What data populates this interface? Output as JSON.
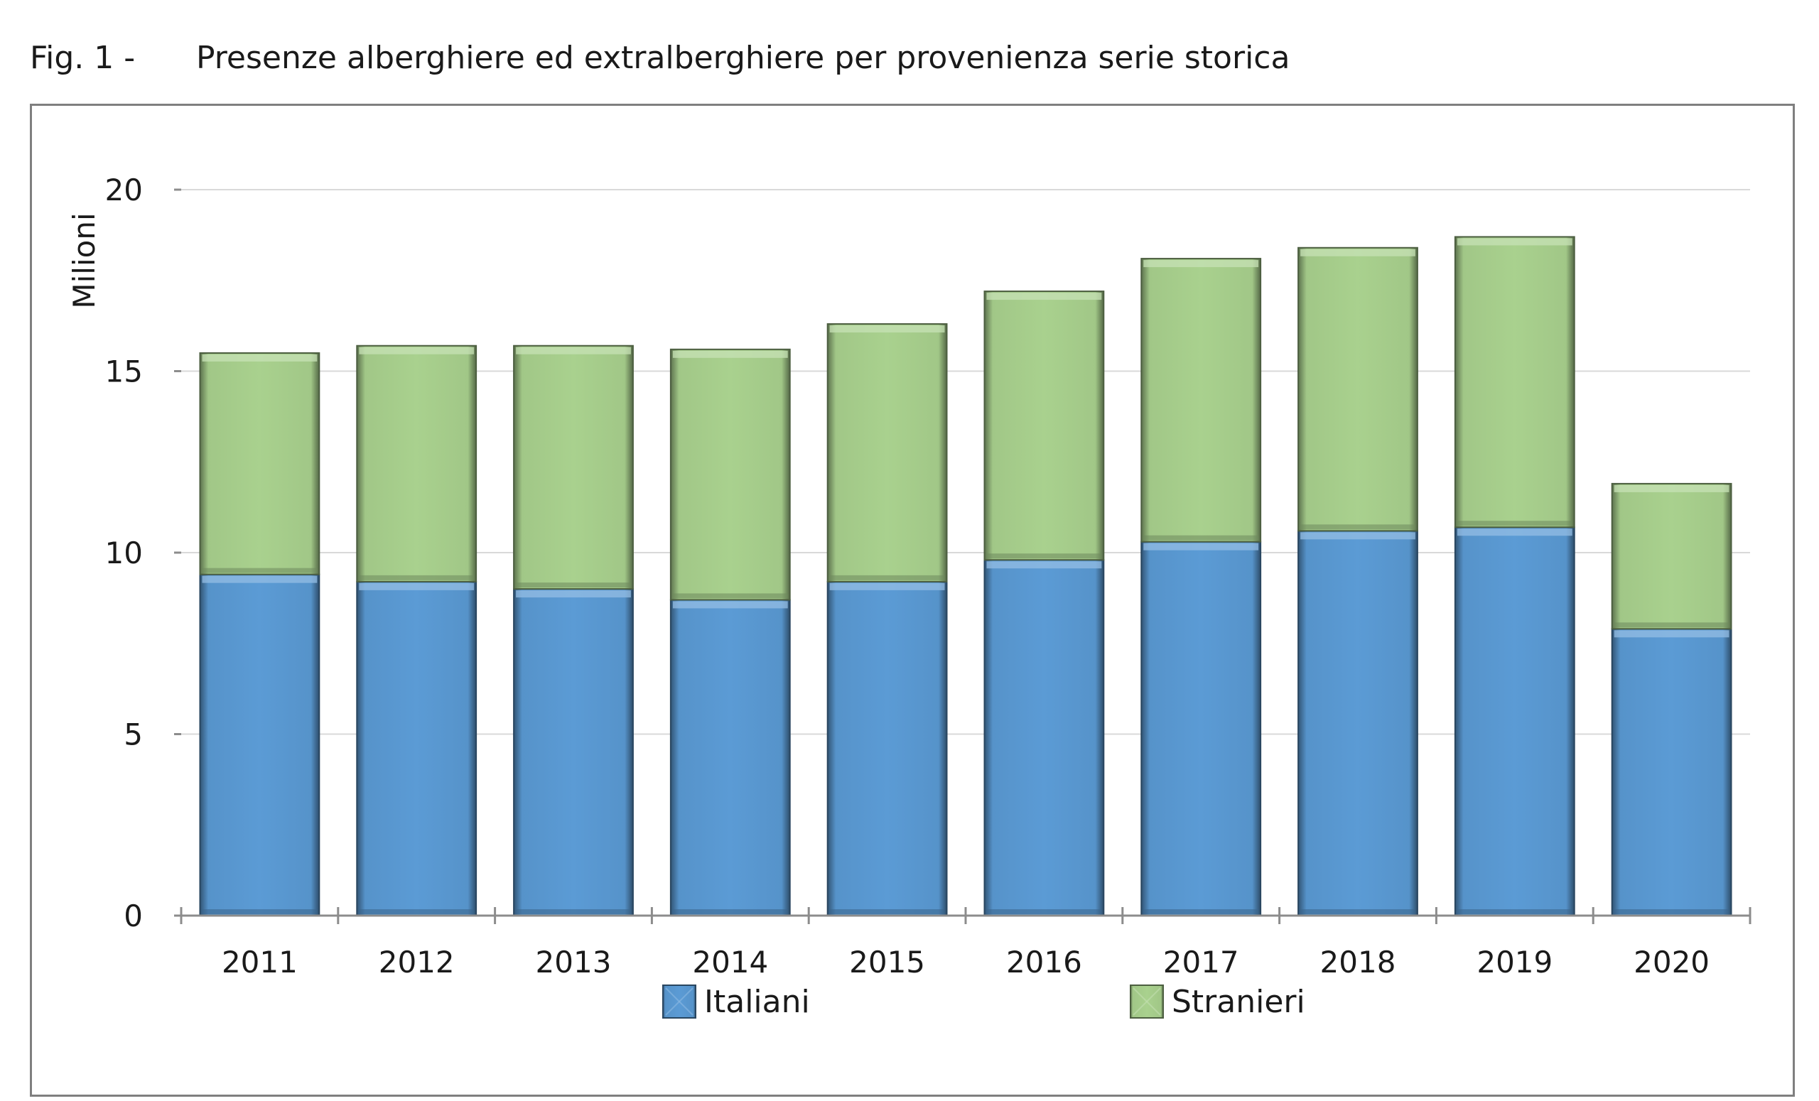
{
  "figure": {
    "number": "Fig. 1 -",
    "title": "Presenze alberghiere ed extralberghiere per provenienza serie storica"
  },
  "chart_data": {
    "type": "bar",
    "stacked": true,
    "categories": [
      "2011",
      "2012",
      "2013",
      "2014",
      "2015",
      "2016",
      "2017",
      "2018",
      "2019",
      "2020"
    ],
    "series": [
      {
        "name": "Italiani",
        "color": "#5b9bd5",
        "values": [
          9.4,
          9.2,
          9.0,
          8.7,
          9.2,
          9.8,
          10.3,
          10.6,
          10.7,
          7.9
        ]
      },
      {
        "name": "Stranieri",
        "color": "#a9d18e",
        "values": [
          6.1,
          6.5,
          6.7,
          6.9,
          7.1,
          7.4,
          7.8,
          7.8,
          8.0,
          4.0
        ]
      }
    ],
    "title": "",
    "xlabel": "",
    "ylabel": "Milioni",
    "ylim": [
      0,
      20
    ],
    "yticks": [
      0,
      5,
      10,
      15,
      20
    ],
    "grid": true,
    "legend_position": "bottom"
  }
}
